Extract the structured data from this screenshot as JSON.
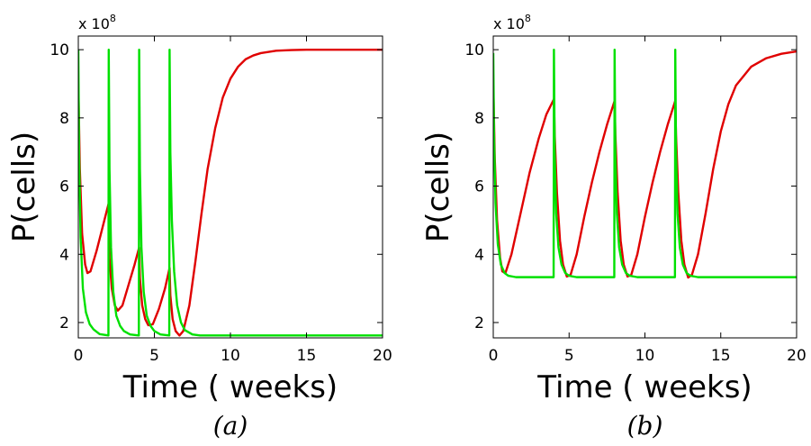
{
  "chart_data": [
    {
      "type": "line",
      "panel_label": "(a)",
      "xlabel": "Time ( weeks)",
      "ylabel": "P(cells)",
      "y_multiplier": {
        "base": "x 10",
        "exponent": "8"
      },
      "xlim": [
        0,
        20
      ],
      "ylim": [
        1.55,
        10.4
      ],
      "xticks": [
        0,
        5,
        10,
        15,
        20
      ],
      "yticks": [
        2,
        4,
        6,
        8,
        10
      ],
      "grid": false,
      "series": [
        {
          "color": "#e00000",
          "points": [
            [
              0,
              9.0
            ],
            [
              0.1,
              6.5
            ],
            [
              0.25,
              4.6
            ],
            [
              0.45,
              3.7
            ],
            [
              0.6,
              3.45
            ],
            [
              0.8,
              3.5
            ],
            [
              1.2,
              4.1
            ],
            [
              1.6,
              4.8
            ],
            [
              2.0,
              5.5
            ],
            [
              2.05,
              3.9
            ],
            [
              2.2,
              3.0
            ],
            [
              2.4,
              2.5
            ],
            [
              2.6,
              2.35
            ],
            [
              2.9,
              2.5
            ],
            [
              3.3,
              3.1
            ],
            [
              3.7,
              3.7
            ],
            [
              4.0,
              4.2
            ],
            [
              4.05,
              3.3
            ],
            [
              4.2,
              2.5
            ],
            [
              4.4,
              2.1
            ],
            [
              4.6,
              1.92
            ],
            [
              4.9,
              1.95
            ],
            [
              5.3,
              2.4
            ],
            [
              5.7,
              3.0
            ],
            [
              6.0,
              3.6
            ],
            [
              6.05,
              2.8
            ],
            [
              6.2,
              2.1
            ],
            [
              6.4,
              1.75
            ],
            [
              6.65,
              1.62
            ],
            [
              6.9,
              1.75
            ],
            [
              7.3,
              2.5
            ],
            [
              7.7,
              3.8
            ],
            [
              8.1,
              5.2
            ],
            [
              8.5,
              6.5
            ],
            [
              9.0,
              7.7
            ],
            [
              9.5,
              8.6
            ],
            [
              10.0,
              9.15
            ],
            [
              10.5,
              9.5
            ],
            [
              11.0,
              9.72
            ],
            [
              11.5,
              9.83
            ],
            [
              12.0,
              9.9
            ],
            [
              13.0,
              9.97
            ],
            [
              14.0,
              9.99
            ],
            [
              15.0,
              10.0
            ],
            [
              20.0,
              10.0
            ]
          ]
        },
        {
          "color": "#00e000",
          "points": [
            [
              0,
              10.0
            ],
            [
              0.05,
              7.0
            ],
            [
              0.15,
              4.5
            ],
            [
              0.3,
              3.0
            ],
            [
              0.5,
              2.3
            ],
            [
              0.75,
              1.95
            ],
            [
              1.0,
              1.8
            ],
            [
              1.4,
              1.66
            ],
            [
              1.98,
              1.62
            ],
            [
              2.0,
              10.0
            ],
            [
              2.05,
              6.5
            ],
            [
              2.15,
              4.2
            ],
            [
              2.3,
              2.9
            ],
            [
              2.5,
              2.2
            ],
            [
              2.75,
              1.9
            ],
            [
              3.0,
              1.75
            ],
            [
              3.4,
              1.65
            ],
            [
              3.98,
              1.62
            ],
            [
              4.0,
              10.0
            ],
            [
              4.05,
              6.5
            ],
            [
              4.15,
              4.2
            ],
            [
              4.3,
              2.9
            ],
            [
              4.5,
              2.2
            ],
            [
              4.75,
              1.9
            ],
            [
              5.0,
              1.75
            ],
            [
              5.4,
              1.65
            ],
            [
              5.98,
              1.62
            ],
            [
              6.0,
              10.0
            ],
            [
              6.05,
              7.0
            ],
            [
              6.15,
              5.0
            ],
            [
              6.3,
              3.5
            ],
            [
              6.5,
              2.5
            ],
            [
              6.75,
              2.0
            ],
            [
              7.0,
              1.78
            ],
            [
              7.5,
              1.65
            ],
            [
              8.0,
              1.62
            ],
            [
              20.0,
              1.62
            ]
          ]
        }
      ]
    },
    {
      "type": "line",
      "panel_label": "(b)",
      "xlabel": "Time ( weeks)",
      "ylabel": "P(cells)",
      "y_multiplier": {
        "base": "x 10",
        "exponent": "8"
      },
      "xlim": [
        0,
        20
      ],
      "ylim": [
        1.55,
        10.4
      ],
      "xticks": [
        0,
        5,
        10,
        15,
        20
      ],
      "yticks": [
        2,
        4,
        6,
        8,
        10
      ],
      "grid": false,
      "series": [
        {
          "color": "#e00000",
          "points": [
            [
              0,
              9.0
            ],
            [
              0.1,
              6.8
            ],
            [
              0.25,
              5.0
            ],
            [
              0.45,
              3.9
            ],
            [
              0.6,
              3.5
            ],
            [
              0.8,
              3.45
            ],
            [
              1.2,
              4.0
            ],
            [
              1.8,
              5.2
            ],
            [
              2.4,
              6.4
            ],
            [
              3.0,
              7.4
            ],
            [
              3.5,
              8.1
            ],
            [
              4.0,
              8.55
            ],
            [
              4.05,
              7.5
            ],
            [
              4.2,
              5.8
            ],
            [
              4.4,
              4.4
            ],
            [
              4.6,
              3.7
            ],
            [
              4.85,
              3.35
            ],
            [
              5.1,
              3.4
            ],
            [
              5.5,
              4.0
            ],
            [
              6.0,
              5.1
            ],
            [
              6.5,
              6.1
            ],
            [
              7.0,
              7.0
            ],
            [
              7.5,
              7.8
            ],
            [
              8.0,
              8.5
            ],
            [
              8.05,
              7.5
            ],
            [
              8.2,
              5.8
            ],
            [
              8.4,
              4.4
            ],
            [
              8.6,
              3.7
            ],
            [
              8.85,
              3.35
            ],
            [
              9.1,
              3.4
            ],
            [
              9.5,
              4.0
            ],
            [
              10.0,
              5.1
            ],
            [
              10.5,
              6.1
            ],
            [
              11.0,
              7.0
            ],
            [
              11.5,
              7.8
            ],
            [
              12.0,
              8.5
            ],
            [
              12.05,
              7.5
            ],
            [
              12.2,
              5.8
            ],
            [
              12.4,
              4.4
            ],
            [
              12.6,
              3.7
            ],
            [
              12.85,
              3.32
            ],
            [
              13.1,
              3.4
            ],
            [
              13.5,
              4.0
            ],
            [
              14.0,
              5.2
            ],
            [
              14.5,
              6.5
            ],
            [
              15.0,
              7.6
            ],
            [
              15.5,
              8.4
            ],
            [
              16.0,
              8.95
            ],
            [
              17.0,
              9.5
            ],
            [
              18.0,
              9.75
            ],
            [
              19.0,
              9.88
            ],
            [
              20.0,
              9.95
            ]
          ]
        },
        {
          "color": "#00e000",
          "points": [
            [
              0,
              9.9
            ],
            [
              0.05,
              7.5
            ],
            [
              0.15,
              5.5
            ],
            [
              0.3,
              4.3
            ],
            [
              0.5,
              3.7
            ],
            [
              0.75,
              3.45
            ],
            [
              1.0,
              3.37
            ],
            [
              1.5,
              3.33
            ],
            [
              3.98,
              3.33
            ],
            [
              4.0,
              10.0
            ],
            [
              4.05,
              7.0
            ],
            [
              4.15,
              5.2
            ],
            [
              4.3,
              4.2
            ],
            [
              4.5,
              3.7
            ],
            [
              4.75,
              3.45
            ],
            [
              5.0,
              3.37
            ],
            [
              5.5,
              3.33
            ],
            [
              7.98,
              3.33
            ],
            [
              8.0,
              10.0
            ],
            [
              8.05,
              7.0
            ],
            [
              8.15,
              5.2
            ],
            [
              8.3,
              4.2
            ],
            [
              8.5,
              3.7
            ],
            [
              8.75,
              3.45
            ],
            [
              9.0,
              3.37
            ],
            [
              9.5,
              3.33
            ],
            [
              11.98,
              3.33
            ],
            [
              12.0,
              10.0
            ],
            [
              12.05,
              7.0
            ],
            [
              12.15,
              5.2
            ],
            [
              12.3,
              4.2
            ],
            [
              12.5,
              3.7
            ],
            [
              12.75,
              3.45
            ],
            [
              13.0,
              3.37
            ],
            [
              13.5,
              3.33
            ],
            [
              20.0,
              3.33
            ]
          ]
        }
      ]
    }
  ]
}
